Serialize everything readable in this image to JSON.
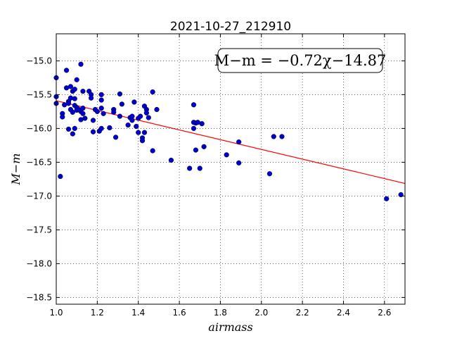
{
  "chart_data": {
    "type": "scatter",
    "title": "2021-10-27_212910",
    "xlabel": "airmass",
    "ylabel": "M−m",
    "xlim": [
      1.0,
      2.7
    ],
    "ylim": [
      -18.6,
      -14.6
    ],
    "xticks": [
      1.0,
      1.2,
      1.4,
      1.6,
      1.8,
      2.0,
      2.2,
      2.4,
      2.6
    ],
    "xtick_labels": [
      "1.0",
      "1.2",
      "1.4",
      "1.6",
      "1.8",
      "2.0",
      "2.2",
      "2.4",
      "2.6"
    ],
    "yticks": [
      -15.0,
      -15.5,
      -16.0,
      -16.5,
      -17.0,
      -17.5,
      -18.0,
      -18.5
    ],
    "ytick_labels": [
      "−15.0",
      "−15.5",
      "−16.0",
      "−16.5",
      "−17.0",
      "−17.5",
      "−18.0",
      "−18.5"
    ],
    "grid": true,
    "annotation": "M−m = −0.72χ−14.87",
    "fit": {
      "slope": -0.72,
      "intercept": -14.87,
      "color": "#ff0000"
    },
    "marker_color": "#0000cc",
    "points": [
      [
        1.0,
        -15.25
      ],
      [
        1.0,
        -15.53
      ],
      [
        1.0,
        -15.63
      ],
      [
        1.02,
        -16.71
      ],
      [
        1.03,
        -15.78
      ],
      [
        1.03,
        -15.83
      ],
      [
        1.04,
        -15.65
      ],
      [
        1.05,
        -15.14
      ],
      [
        1.05,
        -15.4
      ],
      [
        1.06,
        -15.6
      ],
      [
        1.06,
        -15.63
      ],
      [
        1.06,
        -16.01
      ],
      [
        1.07,
        -15.38
      ],
      [
        1.07,
        -15.55
      ],
      [
        1.07,
        -15.72
      ],
      [
        1.08,
        -15.45
      ],
      [
        1.08,
        -15.76
      ],
      [
        1.08,
        -16.08
      ],
      [
        1.09,
        -15.42
      ],
      [
        1.09,
        -15.56
      ],
      [
        1.09,
        -15.66
      ],
      [
        1.09,
        -16.0
      ],
      [
        1.1,
        -15.28
      ],
      [
        1.1,
        -15.69
      ],
      [
        1.1,
        -15.73
      ],
      [
        1.11,
        -15.72
      ],
      [
        1.12,
        -15.05
      ],
      [
        1.12,
        -15.75
      ],
      [
        1.12,
        -15.87
      ],
      [
        1.13,
        -15.45
      ],
      [
        1.13,
        -15.7
      ],
      [
        1.13,
        -15.78
      ],
      [
        1.14,
        -15.85
      ],
      [
        1.16,
        -15.45
      ],
      [
        1.17,
        -15.5
      ],
      [
        1.17,
        -15.55
      ],
      [
        1.18,
        -15.88
      ],
      [
        1.18,
        -16.05
      ],
      [
        1.19,
        -15.72
      ],
      [
        1.2,
        -15.75
      ],
      [
        1.21,
        -16.04
      ],
      [
        1.22,
        -15.5
      ],
      [
        1.22,
        -15.58
      ],
      [
        1.22,
        -15.7
      ],
      [
        1.22,
        -16.0
      ],
      [
        1.23,
        -15.78
      ],
      [
        1.26,
        -15.99
      ],
      [
        1.28,
        -15.72
      ],
      [
        1.28,
        -15.76
      ],
      [
        1.29,
        -16.13
      ],
      [
        1.31,
        -15.49
      ],
      [
        1.31,
        -15.82
      ],
      [
        1.32,
        -15.64
      ],
      [
        1.35,
        -15.95
      ],
      [
        1.36,
        -15.84
      ],
      [
        1.37,
        -15.82
      ],
      [
        1.37,
        -15.88
      ],
      [
        1.38,
        -15.61
      ],
      [
        1.39,
        -15.97
      ],
      [
        1.4,
        -15.85
      ],
      [
        1.4,
        -16.06
      ],
      [
        1.41,
        -15.82
      ],
      [
        1.42,
        -16.14
      ],
      [
        1.42,
        -16.18
      ],
      [
        1.43,
        -15.67
      ],
      [
        1.43,
        -16.06
      ],
      [
        1.44,
        -15.72
      ],
      [
        1.44,
        -15.77
      ],
      [
        1.45,
        -15.84
      ],
      [
        1.47,
        -15.46
      ],
      [
        1.47,
        -16.33
      ],
      [
        1.49,
        -15.72
      ],
      [
        1.56,
        -16.47
      ],
      [
        1.65,
        -16.59
      ],
      [
        1.67,
        -15.65
      ],
      [
        1.67,
        -15.91
      ],
      [
        1.67,
        -16.0
      ],
      [
        1.68,
        -15.92
      ],
      [
        1.68,
        -16.32
      ],
      [
        1.69,
        -15.91
      ],
      [
        1.7,
        -16.59
      ],
      [
        1.71,
        -15.93
      ],
      [
        1.72,
        -16.27
      ],
      [
        1.83,
        -16.39
      ],
      [
        1.89,
        -16.2
      ],
      [
        1.89,
        -16.51
      ],
      [
        2.04,
        -16.67
      ],
      [
        2.06,
        -16.12
      ],
      [
        2.1,
        -16.12
      ],
      [
        2.61,
        -17.04
      ],
      [
        2.68,
        -16.98
      ]
    ]
  }
}
